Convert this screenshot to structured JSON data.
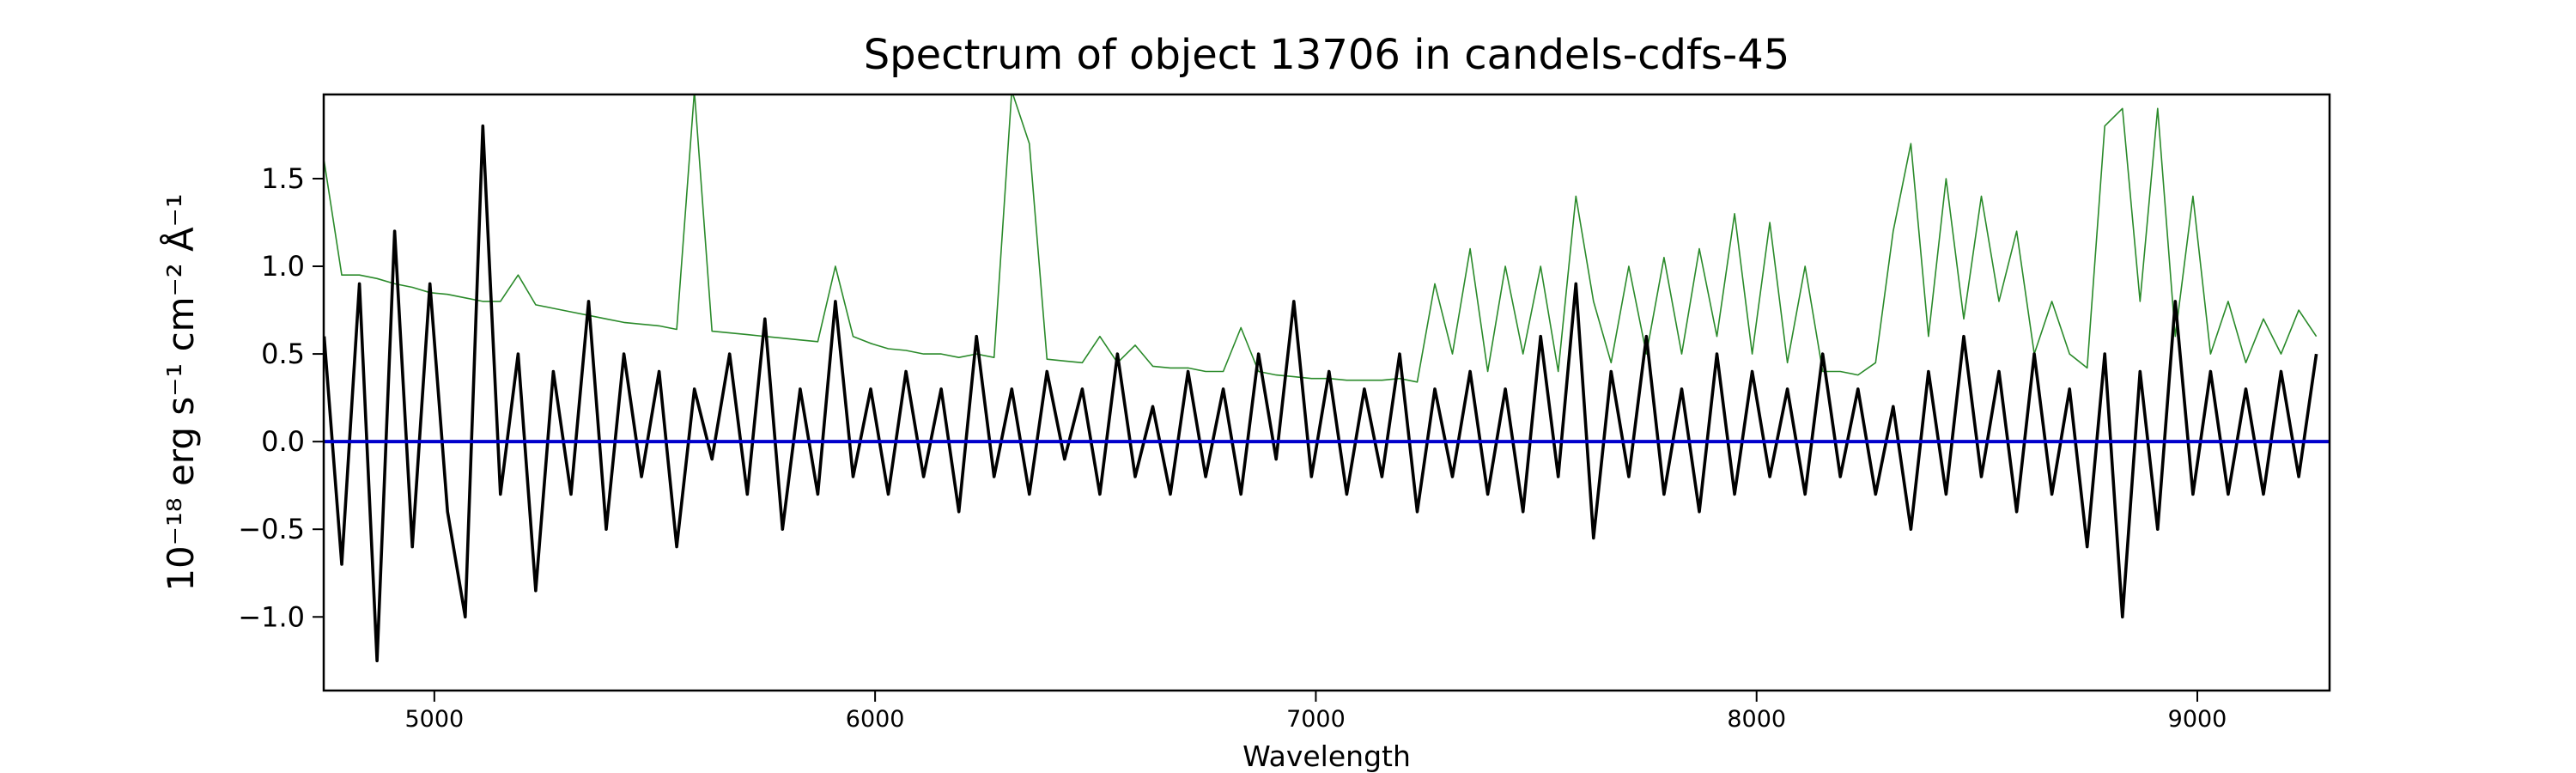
{
  "chart_data": {
    "type": "line",
    "title": "Spectrum of object 13706 in candels-cdfs-45",
    "xlabel": "Wavelength",
    "ylabel": "10⁻¹⁸ erg s⁻¹ cm⁻² Å⁻¹",
    "x": [
      4750,
      4790,
      4830,
      4870,
      4910,
      4950,
      4990,
      5030,
      5070,
      5110,
      5150,
      5190,
      5230,
      5270,
      5310,
      5350,
      5390,
      5430,
      5470,
      5510,
      5550,
      5590,
      5630,
      5670,
      5710,
      5750,
      5790,
      5830,
      5870,
      5910,
      5950,
      5990,
      6030,
      6070,
      6110,
      6150,
      6190,
      6230,
      6270,
      6310,
      6350,
      6390,
      6430,
      6470,
      6510,
      6550,
      6590,
      6630,
      6670,
      6710,
      6750,
      6790,
      6830,
      6870,
      6910,
      6950,
      6990,
      7030,
      7070,
      7110,
      7150,
      7190,
      7230,
      7270,
      7310,
      7350,
      7390,
      7430,
      7470,
      7510,
      7550,
      7590,
      7630,
      7670,
      7710,
      7750,
      7790,
      7830,
      7870,
      7910,
      7950,
      7990,
      8030,
      8070,
      8110,
      8150,
      8190,
      8230,
      8270,
      8310,
      8350,
      8390,
      8430,
      8470,
      8510,
      8550,
      8590,
      8630,
      8670,
      8710,
      8750,
      8790,
      8830,
      8870,
      8910,
      8950,
      8990,
      9030,
      9070,
      9110,
      9150,
      9190,
      9230,
      9270
    ],
    "series": [
      {
        "color": "#2a8a2a",
        "width": 1.6,
        "values": [
          1.6,
          0.95,
          0.95,
          0.93,
          0.9,
          0.88,
          0.85,
          0.84,
          0.82,
          0.8,
          0.8,
          0.95,
          0.78,
          0.76,
          0.74,
          0.72,
          0.7,
          0.68,
          0.67,
          0.66,
          0.64,
          2.0,
          0.63,
          0.62,
          0.61,
          0.6,
          0.59,
          0.58,
          0.57,
          1.0,
          0.6,
          0.56,
          0.53,
          0.52,
          0.5,
          0.5,
          0.48,
          0.5,
          0.48,
          2.0,
          1.7,
          0.47,
          0.46,
          0.45,
          0.6,
          0.45,
          0.55,
          0.43,
          0.42,
          0.42,
          0.4,
          0.4,
          0.65,
          0.4,
          0.38,
          0.37,
          0.36,
          0.36,
          0.35,
          0.35,
          0.35,
          0.36,
          0.34,
          0.9,
          0.5,
          1.1,
          0.4,
          1.0,
          0.5,
          1.0,
          0.4,
          1.4,
          0.8,
          0.45,
          1.0,
          0.5,
          1.05,
          0.5,
          1.1,
          0.6,
          1.3,
          0.5,
          1.25,
          0.45,
          1.0,
          0.4,
          0.4,
          0.38,
          0.45,
          1.2,
          1.7,
          0.6,
          1.5,
          0.7,
          1.4,
          0.8,
          1.2,
          0.5,
          0.8,
          0.5,
          0.42,
          1.8,
          1.9,
          0.8,
          1.9,
          0.6,
          1.4,
          0.5,
          0.8,
          0.45,
          0.7,
          0.5,
          0.75,
          0.6
        ]
      },
      {
        "color": "#000000",
        "width": 3.6,
        "values": [
          0.6,
          -0.7,
          0.9,
          -1.25,
          1.2,
          -0.6,
          0.9,
          -0.4,
          -1.0,
          1.8,
          -0.3,
          0.5,
          -0.85,
          0.4,
          -0.3,
          0.8,
          -0.5,
          0.5,
          -0.2,
          0.4,
          -0.6,
          0.3,
          -0.1,
          0.5,
          -0.3,
          0.7,
          -0.5,
          0.3,
          -0.3,
          0.8,
          -0.2,
          0.3,
          -0.3,
          0.4,
          -0.2,
          0.3,
          -0.4,
          0.6,
          -0.2,
          0.3,
          -0.3,
          0.4,
          -0.1,
          0.3,
          -0.3,
          0.5,
          -0.2,
          0.2,
          -0.3,
          0.4,
          -0.2,
          0.3,
          -0.3,
          0.5,
          -0.1,
          0.8,
          -0.2,
          0.4,
          -0.3,
          0.3,
          -0.2,
          0.5,
          -0.4,
          0.3,
          -0.2,
          0.4,
          -0.3,
          0.3,
          -0.4,
          0.6,
          -0.2,
          0.9,
          -0.55,
          0.4,
          -0.2,
          0.6,
          -0.3,
          0.3,
          -0.4,
          0.5,
          -0.3,
          0.4,
          -0.2,
          0.3,
          -0.3,
          0.5,
          -0.2,
          0.3,
          -0.3,
          0.2,
          -0.5,
          0.4,
          -0.3,
          0.6,
          -0.2,
          0.4,
          -0.4,
          0.5,
          -0.3,
          0.3,
          -0.6,
          0.5,
          -1.0,
          0.4,
          -0.5,
          0.8,
          -0.3,
          0.4,
          -0.3,
          0.3,
          -0.3,
          0.4,
          -0.2,
          0.5
        ]
      }
    ],
    "hline": 0,
    "hline_color": "#0000cc",
    "xlim": [
      4749,
      9300
    ],
    "xticks": [
      5000,
      6000,
      7000,
      8000,
      9000
    ],
    "ylim": [
      -1.42,
      1.98
    ],
    "yticks": [
      {
        "value": -1.0,
        "label": "−1.0"
      },
      {
        "value": -0.5,
        "label": "−0.5"
      },
      {
        "value": 0,
        "label": "0.0"
      },
      0.5,
      {
        "value": 1.0,
        "label": "1.0"
      },
      1.5
    ]
  }
}
